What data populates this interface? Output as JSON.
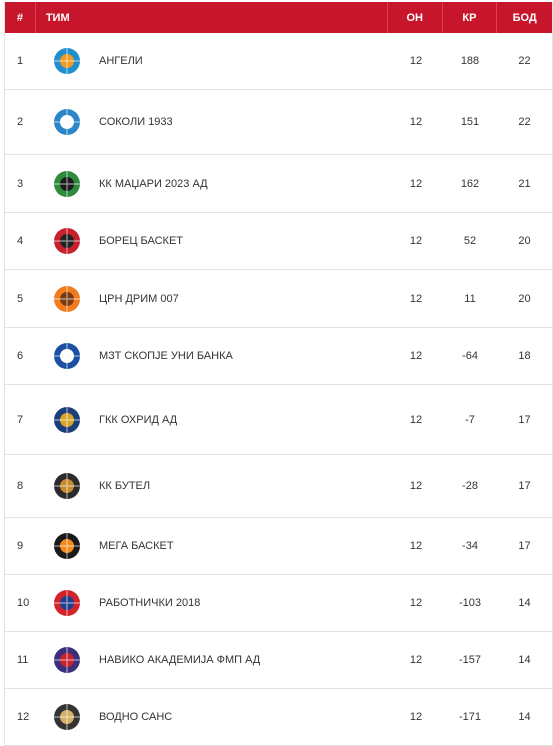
{
  "header": {
    "num": "#",
    "team": "ТИМ",
    "on": "ОН",
    "kr": "КР",
    "bod": "БОД"
  },
  "rows": [
    {
      "rank": "1",
      "team": "АНГЕЛИ",
      "on": "12",
      "kr": "188",
      "bod": "22",
      "logo": "angeli-logo",
      "color": "#1f8fd0",
      "accent": "#f29a1e"
    },
    {
      "rank": "2",
      "team": "СОКОЛИ 1933",
      "on": "12",
      "kr": "151",
      "bod": "22",
      "logo": "sokoli-logo",
      "color": "#2a86c8",
      "accent": "#ffffff"
    },
    {
      "rank": "3",
      "team": "КК МАЏАРИ 2023 АД",
      "on": "12",
      "kr": "162",
      "bod": "21",
      "logo": "madjari-logo",
      "color": "#2e8b3d",
      "accent": "#1b1b1b"
    },
    {
      "rank": "4",
      "team": "БОРЕЦ БАСКЕТ",
      "on": "12",
      "kr": "52",
      "bod": "20",
      "logo": "borec-logo",
      "color": "#c8202c",
      "accent": "#222222"
    },
    {
      "rank": "5",
      "team": "ЦРН ДРИМ 007",
      "on": "12",
      "kr": "11",
      "bod": "20",
      "logo": "crn-drim-logo",
      "color": "#f07c1d",
      "accent": "#7a3a12"
    },
    {
      "rank": "6",
      "team": "МЗТ СКОПЈЕ УНИ БАНКА",
      "on": "12",
      "kr": "-64",
      "bod": "18",
      "logo": "mzt-logo",
      "color": "#1d4fa3",
      "accent": "#ffffff"
    },
    {
      "rank": "7",
      "team": "ГКК ОХРИД АД",
      "on": "12",
      "kr": "-7",
      "bod": "17",
      "logo": "ohrid-logo",
      "color": "#1c3f7a",
      "accent": "#d8a52a"
    },
    {
      "rank": "8",
      "team": "КК БУТЕЛ",
      "on": "12",
      "kr": "-28",
      "bod": "17",
      "logo": "butel-logo",
      "color": "#2b2b2b",
      "accent": "#c98a2e"
    },
    {
      "rank": "9",
      "team": "МЕГА БАСКЕТ",
      "on": "12",
      "kr": "-34",
      "bod": "17",
      "logo": "mega-logo",
      "color": "#1a1a1a",
      "accent": "#f28b1b"
    },
    {
      "rank": "10",
      "team": "РАБОТНИЧКИ 2018",
      "on": "12",
      "kr": "-103",
      "bod": "14",
      "logo": "rabotnicki-logo",
      "color": "#d2232a",
      "accent": "#1e3f8f"
    },
    {
      "rank": "11",
      "team": "НАВИКО АКАДЕМИЈА ФМП АД",
      "on": "12",
      "kr": "-157",
      "bod": "14",
      "logo": "naviko-logo",
      "color": "#3b2f7a",
      "accent": "#c8202c"
    },
    {
      "rank": "12",
      "team": "ВОДНО САНС",
      "on": "12",
      "kr": "-171",
      "bod": "14",
      "logo": "vodno-logo",
      "color": "#333333",
      "accent": "#d4b067"
    }
  ]
}
